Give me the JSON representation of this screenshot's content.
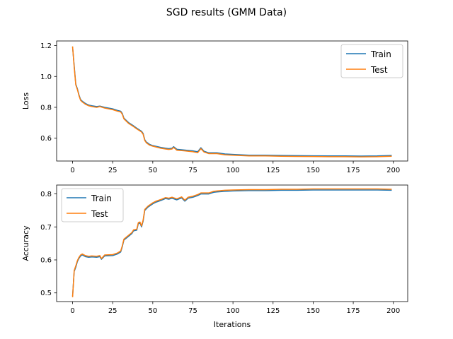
{
  "figure": {
    "suptitle": "SGD results (GMM Data)"
  },
  "chart_data": [
    {
      "type": "line",
      "title": "",
      "xlabel": "",
      "ylabel": "Loss",
      "xlim": [
        -9.95,
        208.95
      ],
      "ylim": [
        0.452,
        1.23
      ],
      "xticks": [
        0,
        25,
        50,
        75,
        100,
        125,
        150,
        175,
        200
      ],
      "yticks": [
        0.6,
        0.8,
        1.0,
        1.2
      ],
      "ytick_labels": [
        "0.6",
        "0.8",
        "1.0",
        "1.2"
      ],
      "legend": {
        "position": "upper right"
      },
      "grid": false,
      "series": [
        {
          "name": "Train",
          "color": "#1f77b4",
          "points": [
            [
              0,
              1.19
            ],
            [
              1,
              1.07
            ],
            [
              2,
              0.95
            ],
            [
              3,
              0.92
            ],
            [
              4,
              0.88
            ],
            [
              5,
              0.85
            ],
            [
              6,
              0.84
            ],
            [
              8,
              0.825
            ],
            [
              10,
              0.815
            ],
            [
              12,
              0.81
            ],
            [
              15,
              0.805
            ],
            [
              17,
              0.808
            ],
            [
              20,
              0.8
            ],
            [
              25,
              0.79
            ],
            [
              28,
              0.78
            ],
            [
              30,
              0.775
            ],
            [
              31,
              0.76
            ],
            [
              32,
              0.73
            ],
            [
              35,
              0.7
            ],
            [
              38,
              0.68
            ],
            [
              40,
              0.665
            ],
            [
              43,
              0.645
            ],
            [
              44,
              0.63
            ],
            [
              45,
              0.59
            ],
            [
              46,
              0.575
            ],
            [
              48,
              0.56
            ],
            [
              50,
              0.552
            ],
            [
              55,
              0.54
            ],
            [
              58,
              0.535
            ],
            [
              60,
              0.532
            ],
            [
              62,
              0.535
            ],
            [
              63,
              0.545
            ],
            [
              65,
              0.528
            ],
            [
              70,
              0.523
            ],
            [
              75,
              0.518
            ],
            [
              78,
              0.512
            ],
            [
              80,
              0.538
            ],
            [
              82,
              0.515
            ],
            [
              85,
              0.505
            ],
            [
              90,
              0.505
            ],
            [
              95,
              0.498
            ],
            [
              100,
              0.495
            ],
            [
              110,
              0.49
            ],
            [
              120,
              0.49
            ],
            [
              130,
              0.488
            ],
            [
              140,
              0.487
            ],
            [
              150,
              0.486
            ],
            [
              160,
              0.485
            ],
            [
              170,
              0.485
            ],
            [
              180,
              0.484
            ],
            [
              190,
              0.485
            ],
            [
              199,
              0.488
            ]
          ]
        },
        {
          "name": "Test",
          "color": "#ff7f0e",
          "points": [
            [
              0,
              1.195
            ],
            [
              1,
              1.06
            ],
            [
              2,
              0.945
            ],
            [
              3,
              0.915
            ],
            [
              4,
              0.875
            ],
            [
              5,
              0.845
            ],
            [
              6,
              0.835
            ],
            [
              8,
              0.82
            ],
            [
              10,
              0.81
            ],
            [
              12,
              0.805
            ],
            [
              15,
              0.8
            ],
            [
              17,
              0.805
            ],
            [
              20,
              0.795
            ],
            [
              25,
              0.785
            ],
            [
              28,
              0.775
            ],
            [
              30,
              0.77
            ],
            [
              31,
              0.755
            ],
            [
              32,
              0.725
            ],
            [
              35,
              0.695
            ],
            [
              38,
              0.675
            ],
            [
              40,
              0.66
            ],
            [
              43,
              0.64
            ],
            [
              44,
              0.625
            ],
            [
              45,
              0.585
            ],
            [
              46,
              0.57
            ],
            [
              48,
              0.555
            ],
            [
              50,
              0.548
            ],
            [
              55,
              0.535
            ],
            [
              58,
              0.53
            ],
            [
              60,
              0.527
            ],
            [
              62,
              0.53
            ],
            [
              63,
              0.54
            ],
            [
              65,
              0.522
            ],
            [
              70,
              0.518
            ],
            [
              75,
              0.512
            ],
            [
              78,
              0.506
            ],
            [
              80,
              0.532
            ],
            [
              82,
              0.51
            ],
            [
              85,
              0.5
            ],
            [
              90,
              0.5
            ],
            [
              95,
              0.492
            ],
            [
              100,
              0.49
            ],
            [
              110,
              0.485
            ],
            [
              120,
              0.485
            ],
            [
              130,
              0.483
            ],
            [
              140,
              0.482
            ],
            [
              150,
              0.481
            ],
            [
              160,
              0.48
            ],
            [
              170,
              0.48
            ],
            [
              180,
              0.479
            ],
            [
              190,
              0.48
            ],
            [
              199,
              0.483
            ]
          ]
        }
      ]
    },
    {
      "type": "line",
      "title": "",
      "xlabel": "Iterations",
      "ylabel": "Accuracy",
      "xlim": [
        -9.95,
        208.95
      ],
      "ylim": [
        0.4737,
        0.8269
      ],
      "xticks": [
        0,
        25,
        50,
        75,
        100,
        125,
        150,
        175,
        200
      ],
      "yticks": [
        0.5,
        0.6,
        0.7,
        0.8
      ],
      "ytick_labels": [
        "0.5",
        "0.6",
        "0.7",
        "0.8"
      ],
      "legend": {
        "position": "upper left"
      },
      "grid": false,
      "series": [
        {
          "name": "Train",
          "color": "#1f77b4",
          "points": [
            [
              0,
              0.49
            ],
            [
              1,
              0.565
            ],
            [
              2,
              0.578
            ],
            [
              3,
              0.595
            ],
            [
              4,
              0.605
            ],
            [
              5,
              0.612
            ],
            [
              6,
              0.615
            ],
            [
              8,
              0.61
            ],
            [
              10,
              0.608
            ],
            [
              12,
              0.609
            ],
            [
              15,
              0.608
            ],
            [
              17,
              0.61
            ],
            [
              18,
              0.602
            ],
            [
              20,
              0.612
            ],
            [
              25,
              0.613
            ],
            [
              28,
              0.618
            ],
            [
              30,
              0.624
            ],
            [
              31,
              0.64
            ],
            [
              32,
              0.66
            ],
            [
              35,
              0.672
            ],
            [
              37,
              0.68
            ],
            [
              38,
              0.688
            ],
            [
              40,
              0.69
            ],
            [
              41,
              0.71
            ],
            [
              42,
              0.712
            ],
            [
              43,
              0.7
            ],
            [
              44,
              0.718
            ],
            [
              45,
              0.75
            ],
            [
              47,
              0.76
            ],
            [
              50,
              0.77
            ],
            [
              52,
              0.775
            ],
            [
              55,
              0.78
            ],
            [
              58,
              0.786
            ],
            [
              60,
              0.784
            ],
            [
              62,
              0.787
            ],
            [
              65,
              0.782
            ],
            [
              68,
              0.788
            ],
            [
              70,
              0.778
            ],
            [
              72,
              0.787
            ],
            [
              75,
              0.79
            ],
            [
              78,
              0.795
            ],
            [
              80,
              0.8
            ],
            [
              85,
              0.8
            ],
            [
              88,
              0.805
            ],
            [
              90,
              0.806
            ],
            [
              95,
              0.808
            ],
            [
              100,
              0.809
            ],
            [
              110,
              0.81
            ],
            [
              120,
              0.81
            ],
            [
              130,
              0.811
            ],
            [
              140,
              0.811
            ],
            [
              150,
              0.812
            ],
            [
              160,
              0.812
            ],
            [
              170,
              0.812
            ],
            [
              180,
              0.812
            ],
            [
              190,
              0.812
            ],
            [
              199,
              0.811
            ]
          ]
        },
        {
          "name": "Test",
          "color": "#ff7f0e",
          "points": [
            [
              0,
              0.487
            ],
            [
              1,
              0.568
            ],
            [
              2,
              0.582
            ],
            [
              3,
              0.598
            ],
            [
              4,
              0.608
            ],
            [
              5,
              0.615
            ],
            [
              6,
              0.618
            ],
            [
              8,
              0.613
            ],
            [
              10,
              0.611
            ],
            [
              12,
              0.612
            ],
            [
              15,
              0.611
            ],
            [
              17,
              0.613
            ],
            [
              18,
              0.604
            ],
            [
              20,
              0.615
            ],
            [
              25,
              0.616
            ],
            [
              28,
              0.621
            ],
            [
              30,
              0.627
            ],
            [
              31,
              0.643
            ],
            [
              32,
              0.663
            ],
            [
              35,
              0.675
            ],
            [
              37,
              0.683
            ],
            [
              38,
              0.691
            ],
            [
              40,
              0.693
            ],
            [
              41,
              0.713
            ],
            [
              42,
              0.715
            ],
            [
              43,
              0.703
            ],
            [
              44,
              0.721
            ],
            [
              45,
              0.753
            ],
            [
              47,
              0.763
            ],
            [
              50,
              0.773
            ],
            [
              52,
              0.778
            ],
            [
              55,
              0.783
            ],
            [
              58,
              0.789
            ],
            [
              60,
              0.787
            ],
            [
              62,
              0.79
            ],
            [
              65,
              0.785
            ],
            [
              68,
              0.791
            ],
            [
              70,
              0.781
            ],
            [
              72,
              0.79
            ],
            [
              75,
              0.793
            ],
            [
              78,
              0.798
            ],
            [
              80,
              0.803
            ],
            [
              85,
              0.803
            ],
            [
              88,
              0.808
            ],
            [
              90,
              0.809
            ],
            [
              95,
              0.811
            ],
            [
              100,
              0.812
            ],
            [
              110,
              0.813
            ],
            [
              120,
              0.813
            ],
            [
              130,
              0.814
            ],
            [
              140,
              0.814
            ],
            [
              150,
              0.815
            ],
            [
              160,
              0.815
            ],
            [
              170,
              0.815
            ],
            [
              180,
              0.815
            ],
            [
              190,
              0.815
            ],
            [
              199,
              0.814
            ]
          ]
        }
      ]
    }
  ]
}
